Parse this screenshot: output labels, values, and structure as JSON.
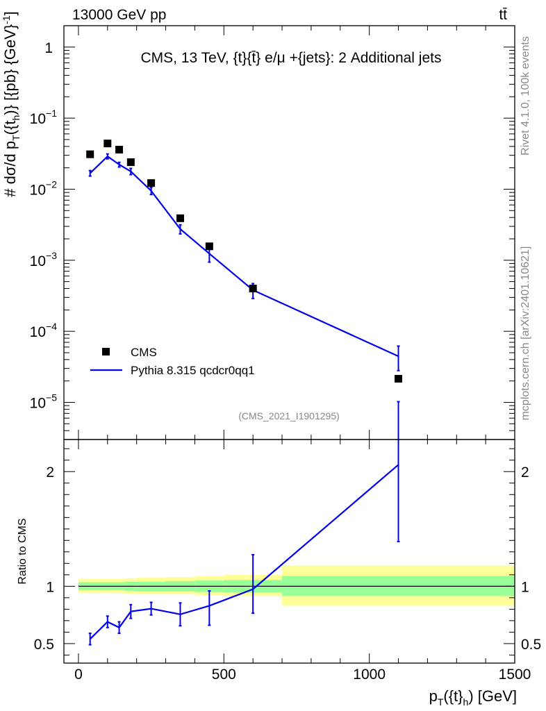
{
  "header": {
    "left": "13000 GeV pp",
    "right": "tt̄"
  },
  "side_labels": {
    "rivet": "Rivet 4.1.0,  100k events",
    "mcplots": "mcplots.cern.ch [arXiv:2401.10621]"
  },
  "chart_data": [
    {
      "type": "scatter",
      "panel": "main",
      "title": "CMS, 13 TeV, {t}{t̄} e/μ +{jets}: 2 Additional jets",
      "analysis_tag": "(CMS_2021_I1901295)",
      "ylabel": "d σ / d pT({t}h) [{pb} {GeV}^-1]",
      "yscale": "log",
      "xlim": [
        -50,
        1500
      ],
      "ylim": [
        3e-06,
        2
      ],
      "y_ticks": [
        {
          "value": 1e-05,
          "label": "10",
          "exp": "−5"
        },
        {
          "value": 0.0001,
          "label": "10",
          "exp": "−4"
        },
        {
          "value": 0.001,
          "label": "10",
          "exp": "−3"
        },
        {
          "value": 0.01,
          "label": "10",
          "exp": "−2"
        },
        {
          "value": 0.1,
          "label": "10",
          "exp": "−1"
        },
        {
          "value": 1,
          "label": "1",
          "exp": ""
        }
      ],
      "legend": [
        {
          "label": "CMS",
          "style": "marker",
          "color": "#000000"
        },
        {
          "label": "Pythia 8.315 qcdcr0qq1",
          "style": "line",
          "color": "#0000ee"
        }
      ],
      "series": [
        {
          "name": "CMS",
          "style": "marker",
          "color": "#000000",
          "x": [
            40,
            100,
            140,
            180,
            250,
            350,
            450,
            600,
            1100
          ],
          "y": [
            0.031,
            0.044,
            0.036,
            0.024,
            0.0122,
            0.0039,
            0.00157,
            0.0004,
            2.15e-05
          ]
        },
        {
          "name": "Pythia 8.315 qcdcr0qq1",
          "style": "line",
          "color": "#0000ee",
          "x": [
            40,
            100,
            140,
            180,
            250,
            350,
            450,
            600,
            1100
          ],
          "y": [
            0.0168,
            0.029,
            0.0222,
            0.0178,
            0.0095,
            0.00275,
            0.00124,
            0.00038,
            4.45e-05
          ],
          "yerr_low": [
            0.0015,
            0.0023,
            0.0017,
            0.0018,
            0.0011,
            0.0004,
            0.0003,
            9e-05,
            1.65e-05
          ],
          "yerr_high": [
            0.0015,
            0.0023,
            0.0017,
            0.0018,
            0.0011,
            0.0004,
            0.0003,
            9e-05,
            1.75e-05
          ]
        }
      ]
    },
    {
      "type": "line",
      "panel": "ratio",
      "ylabel": "Ratio to CMS",
      "xlabel": "pT({t}h) [GeV]",
      "xlim": [
        -50,
        1500
      ],
      "ylim": [
        0.33,
        2.28
      ],
      "x_ticks": [
        0,
        500,
        1000,
        1500
      ],
      "y_ticks": [
        0.5,
        1,
        2
      ],
      "bands": {
        "bin_edges": [
          0,
          80,
          120,
          160,
          200,
          300,
          400,
          500,
          700,
          1500
        ],
        "inner_low": [
          0.965,
          0.965,
          0.965,
          0.96,
          0.955,
          0.955,
          0.95,
          0.945,
          0.915
        ],
        "inner_high": [
          1.035,
          1.035,
          1.035,
          1.04,
          1.04,
          1.045,
          1.05,
          1.055,
          1.09
        ],
        "outer_low": [
          0.94,
          0.94,
          0.94,
          0.935,
          0.93,
          0.93,
          0.92,
          0.915,
          0.83
        ],
        "outer_high": [
          1.065,
          1.065,
          1.065,
          1.07,
          1.075,
          1.08,
          1.09,
          1.1,
          1.18
        ],
        "inner_color": "#99ff99",
        "outer_color": "#ffff99"
      },
      "series": [
        {
          "name": "Pythia 8.315 qcdcr0qq1 / CMS",
          "color": "#0000ee",
          "x": [
            40,
            100,
            140,
            180,
            250,
            350,
            450,
            600,
            1100
          ],
          "y": [
            0.54,
            0.69,
            0.64,
            0.78,
            0.805,
            0.755,
            0.83,
            0.975,
            2.06
          ],
          "yerr_low": [
            0.05,
            0.05,
            0.05,
            0.06,
            0.055,
            0.1,
            0.17,
            0.21,
            0.67
          ],
          "yerr_high": [
            0.05,
            0.05,
            0.05,
            0.06,
            0.055,
            0.1,
            0.13,
            0.3,
            0.55
          ]
        }
      ]
    }
  ]
}
